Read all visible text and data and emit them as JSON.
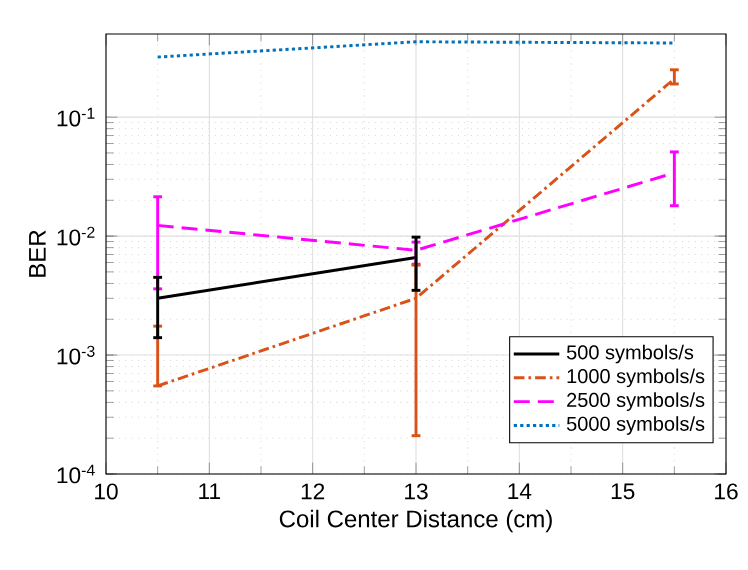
{
  "chart_data": {
    "type": "line",
    "xlabel": "Coil Center Distance (cm)",
    "ylabel": "BER",
    "log": "y",
    "grid": true,
    "legend": "bottom right",
    "marker": "none",
    "x": [
      10.5,
      13,
      15.5
    ],
    "xlim": [
      10,
      16
    ],
    "xticks": [
      10,
      11,
      12,
      13,
      14,
      15,
      16
    ],
    "ylim": [
      0.0001,
      0.5
    ],
    "yticks": [
      {
        "value": 0.0001,
        "label": "10$^{-4}$"
      },
      {
        "value": 0.001,
        "label": "10$^{-3}$"
      },
      {
        "value": 0.01,
        "label": "10$^{-2}$"
      },
      {
        "value": 0.1,
        "label": "10$^{-1}$"
      }
    ],
    "series": [
      {
        "name": "500 symbols/s",
        "color": "#000000",
        "line_style": "solid",
        "x": [
          10.5,
          13
        ],
        "values": [
          0.003,
          0.0066
        ],
        "errors": [
          [
            0.0014,
            0.0045
          ],
          [
            0.0035,
            0.0098
          ]
        ]
      },
      {
        "name": "1000 symbols/s",
        "color": "#d95319",
        "line_style": "dashdot",
        "values": [
          0.00055,
          0.003,
          0.21
        ],
        "errors": [
          [
            0.00055,
            0.00175
          ],
          [
            0.00021,
            0.0057
          ],
          [
            0.19,
            0.25
          ]
        ]
      },
      {
        "name": "2500 symbols/s",
        "color": "#ff00ff",
        "line_style": "dashed",
        "values": [
          0.0123,
          0.0076,
          0.034
        ],
        "errors": [
          [
            0.0036,
            0.0214
          ],
          [
            0.0058,
            0.0089
          ],
          [
            0.018,
            0.051
          ]
        ]
      },
      {
        "name": "5000 symbols/s",
        "color": "#0072bd",
        "line_style": "dotted",
        "values": [
          0.32,
          0.43,
          0.42
        ]
      }
    ]
  }
}
